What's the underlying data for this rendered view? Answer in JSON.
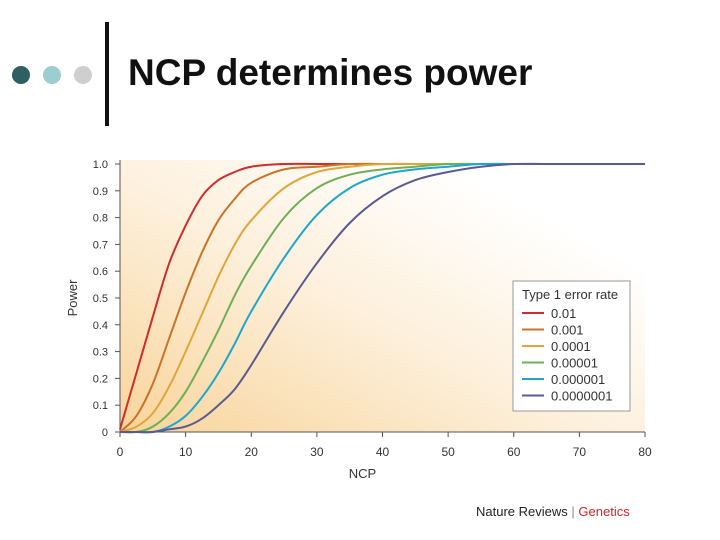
{
  "slide": {
    "title": "NCP determines power",
    "bullet_dot_colors": [
      "#2e5f62",
      "#9ccdd1",
      "#cfcfcf"
    ]
  },
  "credit": {
    "journal": "Nature Reviews",
    "separator": "|",
    "section": "Genetics"
  },
  "chart_data": {
    "type": "line",
    "xlabel": "NCP",
    "ylabel": "Power",
    "xlim": [
      0,
      80
    ],
    "ylim": [
      0,
      1
    ],
    "x_ticks": [
      "0",
      "10",
      "20",
      "30",
      "40",
      "50",
      "60",
      "70",
      "80"
    ],
    "y_ticks": [
      "0",
      "0.1",
      "0.2",
      "0.3",
      "0.4",
      "0.5",
      "0.6",
      "0.7",
      "0.8",
      "0.9",
      "1.0"
    ],
    "grid": false,
    "background": "warm gradient (orange fading to white)",
    "legend_position": "bottom-right",
    "legend_title": "Type 1 error rate",
    "x": [
      0,
      2.5,
      5,
      7.5,
      10,
      12.5,
      15,
      17.5,
      20,
      25,
      30,
      35,
      40,
      45,
      50,
      55,
      60,
      65,
      70,
      75,
      80
    ],
    "series": [
      {
        "name": "0.01",
        "color": "#cf2d2b",
        "values": [
          0.01,
          0.22,
          0.43,
          0.63,
          0.77,
          0.88,
          0.94,
          0.97,
          0.99,
          1.0,
          1.0,
          1.0,
          1.0,
          1.0,
          1.0,
          1.0,
          1.0,
          1.0,
          1.0,
          1.0,
          1.0
        ]
      },
      {
        "name": "0.001",
        "color": "#c97428",
        "values": [
          0.0,
          0.06,
          0.18,
          0.35,
          0.52,
          0.67,
          0.79,
          0.87,
          0.93,
          0.98,
          0.99,
          1.0,
          1.0,
          1.0,
          1.0,
          1.0,
          1.0,
          1.0,
          1.0,
          1.0,
          1.0
        ]
      },
      {
        "name": "0.0001",
        "color": "#e0a63b",
        "values": [
          0.0,
          0.02,
          0.07,
          0.17,
          0.3,
          0.44,
          0.58,
          0.7,
          0.79,
          0.91,
          0.97,
          0.99,
          1.0,
          1.0,
          1.0,
          1.0,
          1.0,
          1.0,
          1.0,
          1.0,
          1.0
        ]
      },
      {
        "name": "0.00001",
        "color": "#6fae57",
        "values": [
          0.0,
          0.0,
          0.02,
          0.07,
          0.15,
          0.26,
          0.38,
          0.51,
          0.62,
          0.8,
          0.91,
          0.96,
          0.98,
          0.99,
          1.0,
          1.0,
          1.0,
          1.0,
          1.0,
          1.0,
          1.0
        ]
      },
      {
        "name": "0.000001",
        "color": "#1ea6cf",
        "values": [
          0.0,
          0.0,
          0.0,
          0.02,
          0.06,
          0.13,
          0.22,
          0.33,
          0.45,
          0.65,
          0.81,
          0.91,
          0.96,
          0.98,
          0.99,
          1.0,
          1.0,
          1.0,
          1.0,
          1.0,
          1.0
        ]
      },
      {
        "name": "0.0000001",
        "color": "#5a5a92",
        "values": [
          0.0,
          0.0,
          0.0,
          0.01,
          0.02,
          0.05,
          0.1,
          0.16,
          0.25,
          0.45,
          0.63,
          0.78,
          0.88,
          0.94,
          0.97,
          0.99,
          1.0,
          1.0,
          1.0,
          1.0,
          1.0
        ]
      }
    ]
  }
}
